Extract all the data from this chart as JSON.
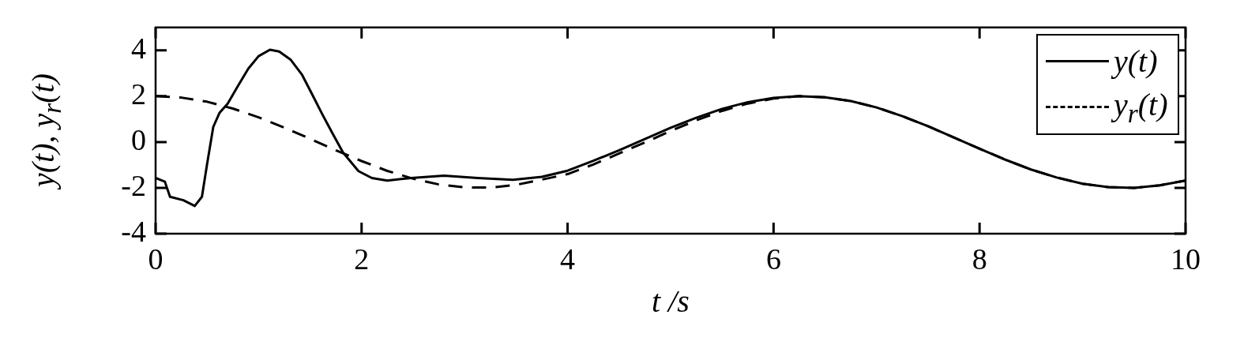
{
  "chart_data": {
    "type": "line",
    "xlabel": "t /s",
    "ylabel": "y(t), y$_{r}$(t)",
    "xlim": [
      0,
      10
    ],
    "ylim": [
      -4,
      5
    ],
    "xticks": [
      0,
      2,
      4,
      6,
      8,
      10
    ],
    "yticks": [
      -4,
      -2,
      0,
      2,
      4
    ],
    "legend": "top right",
    "marker": "none",
    "grid": false,
    "series": [
      {
        "name": "y(t)",
        "color": "#000000",
        "line_style": "solid",
        "x": [
          0,
          0.09,
          0.14,
          0.27,
          0.38,
          0.45,
          0.5,
          0.56,
          0.62,
          0.7,
          0.8,
          0.9,
          1.0,
          1.11,
          1.2,
          1.31,
          1.42,
          1.52,
          1.62,
          1.72,
          1.82,
          1.97,
          2.1,
          2.25,
          2.48,
          2.8,
          3.13,
          3.47,
          3.75,
          4.0,
          4.25,
          4.5,
          4.75,
          5.0,
          5.25,
          5.5,
          5.75,
          6.0,
          6.25,
          6.5,
          6.75,
          7.0,
          7.25,
          7.5,
          7.75,
          8.0,
          8.25,
          8.5,
          8.75,
          9.0,
          9.25,
          9.5,
          9.75,
          10
        ],
        "values": [
          -1.57,
          -1.73,
          -2.39,
          -2.54,
          -2.79,
          -2.39,
          -0.96,
          0.66,
          1.27,
          1.68,
          2.45,
          3.2,
          3.75,
          4.03,
          3.95,
          3.6,
          2.95,
          2.08,
          1.2,
          0.36,
          -0.46,
          -1.27,
          -1.57,
          -1.68,
          -1.57,
          -1.47,
          -1.57,
          -1.65,
          -1.52,
          -1.25,
          -0.82,
          -0.36,
          0.13,
          0.62,
          1.06,
          1.45,
          1.74,
          1.93,
          2.0,
          1.95,
          1.79,
          1.51,
          1.13,
          0.69,
          0.2,
          -0.29,
          -0.77,
          -1.2,
          -1.55,
          -1.82,
          -1.97,
          -2.0,
          -1.89,
          -1.68
        ]
      },
      {
        "name": "y$_{r}$(t)",
        "color": "#000000",
        "line_style": "dashed",
        "x": [
          0,
          0.25,
          0.5,
          0.75,
          1.0,
          1.25,
          1.5,
          1.75,
          2.0,
          2.25,
          2.5,
          2.75,
          3.0,
          3.25,
          3.5,
          3.75,
          4.0,
          4.25,
          4.5,
          4.75,
          5.0,
          5.25,
          5.5,
          5.75,
          6.0,
          6.25,
          6.5,
          6.75,
          7.0,
          7.25,
          7.5,
          7.75,
          8.0,
          8.25,
          8.5,
          8.75,
          9.0,
          9.25,
          9.5,
          9.75,
          10
        ],
        "values": [
          2.0,
          1.94,
          1.76,
          1.46,
          1.08,
          0.63,
          0.14,
          -0.36,
          -0.83,
          -1.26,
          -1.6,
          -1.85,
          -1.98,
          -1.99,
          -1.87,
          -1.64,
          -1.4,
          -0.98,
          -0.5,
          -0.02,
          0.48,
          0.95,
          1.36,
          1.68,
          1.9,
          2.0,
          1.95,
          1.79,
          1.51,
          1.13,
          0.69,
          0.2,
          -0.29,
          -0.77,
          -1.2,
          -1.55,
          -1.82,
          -1.97,
          -2.0,
          -1.89,
          -1.68
        ]
      }
    ]
  }
}
